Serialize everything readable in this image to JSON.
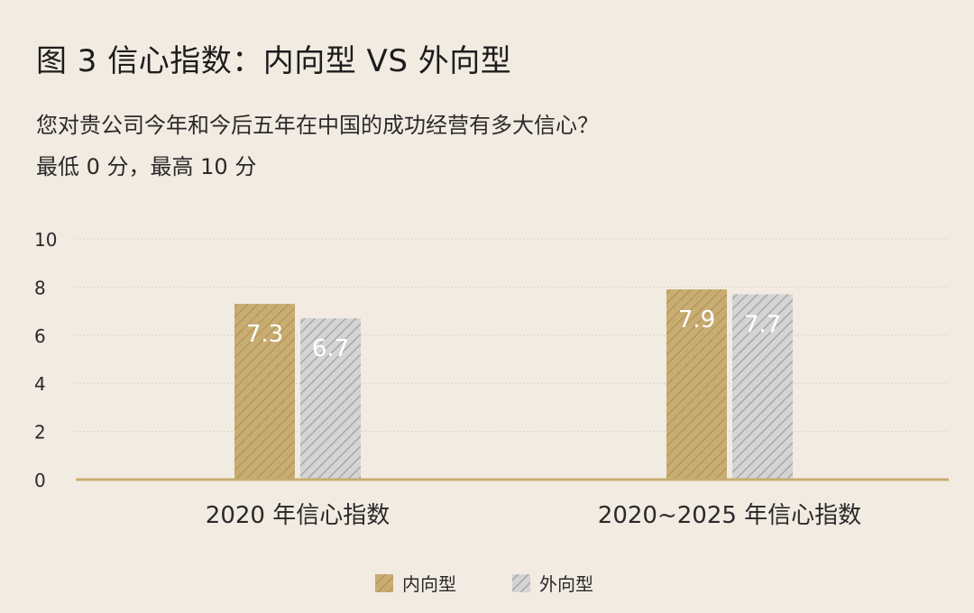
{
  "title": "图 3  信心指数：内向型 VS 外向型",
  "subtitle_lines": [
    "您对贵公司今年和今后五年在中国的成功经营有多大信心？",
    "最低 0 分，最高 10 分"
  ],
  "chart_data": {
    "type": "bar",
    "categories": [
      "2020 年信心指数",
      "2020~2025 年信心指数"
    ],
    "series": [
      {
        "name": "内向型",
        "values": [
          7.3,
          7.9
        ],
        "color": "#c8ad72",
        "pattern": "diagonal-hatch"
      },
      {
        "name": "外向型",
        "values": [
          6.7,
          7.7
        ],
        "color": "#c4c4c4",
        "pattern": "diagonal-hatch"
      }
    ],
    "y_ticks": [
      "0",
      "2",
      "4",
      "6",
      "8",
      "10"
    ],
    "ylim": [
      0,
      10
    ],
    "grid": true,
    "legend_position": "bottom-center",
    "axis_color": "#c8ad72",
    "grid_color": "#d9d2c6"
  }
}
